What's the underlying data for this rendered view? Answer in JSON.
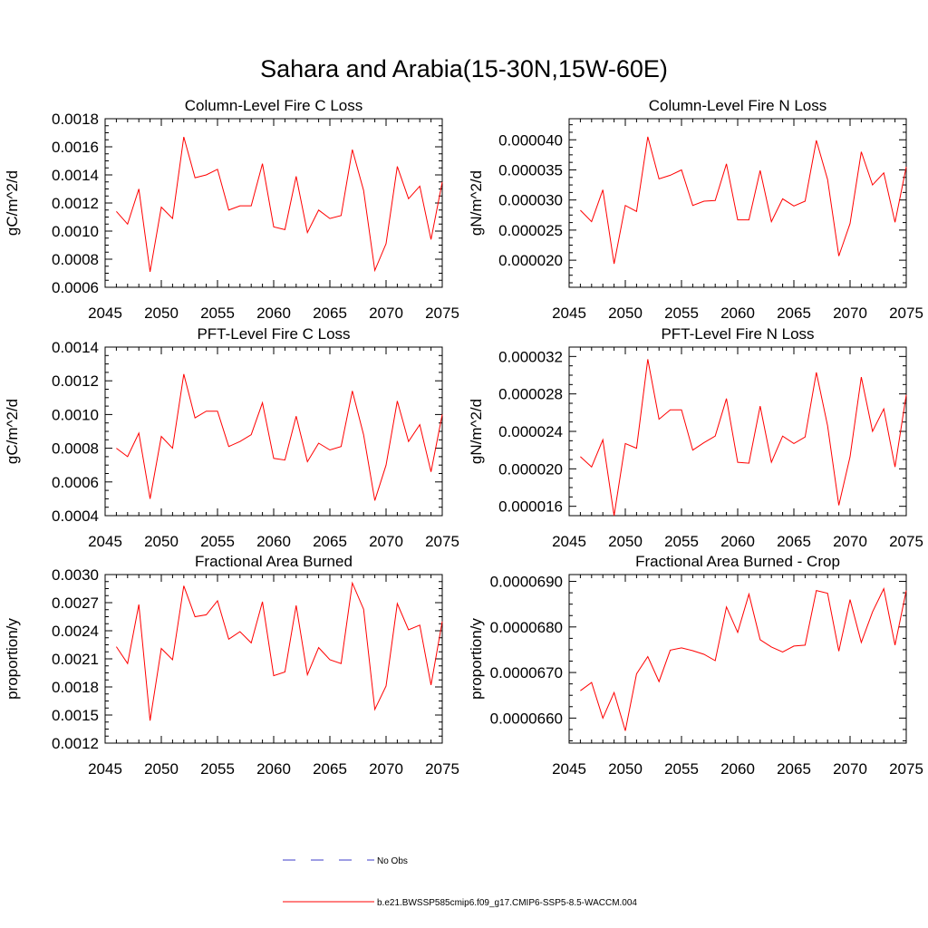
{
  "title": "Sahara and Arabia(15-30N,15W-60E)",
  "colors": {
    "model": "#ff0000",
    "obs": "#3c3cc8",
    "axis": "#000000"
  },
  "legend": {
    "obs_label": "No Obs",
    "model_label": "b.e21.BWSSP585cmip6.f09_g17.CMIP6-SSP5-8.5-WACCM.004"
  },
  "chart_data": [
    {
      "type": "line",
      "title": "Column-Level Fire C Loss",
      "ylabel": "gC/m^2/d",
      "xlabel": "",
      "xlim": [
        2045,
        2075
      ],
      "ylim": [
        0.0006,
        0.0018
      ],
      "xticks": [
        "2045",
        "2050",
        "2055",
        "2060",
        "2065",
        "2070",
        "2075"
      ],
      "yticks": [
        "0.0006",
        "0.0008",
        "0.0010",
        "0.0012",
        "0.0014",
        "0.0016",
        "0.0018"
      ],
      "x": [
        2046,
        2047,
        2048,
        2049,
        2050,
        2051,
        2052,
        2053,
        2054,
        2055,
        2056,
        2057,
        2058,
        2059,
        2060,
        2061,
        2062,
        2063,
        2064,
        2065,
        2066,
        2067,
        2068,
        2069,
        2070,
        2071,
        2072,
        2073,
        2074,
        2075
      ],
      "series": [
        {
          "name": "b.e21.BWSSP585cmip6.f09_g17.CMIP6-SSP5-8.5-WACCM.004",
          "values": [
            0.00114,
            0.00105,
            0.0013,
            0.00071,
            0.00117,
            0.00109,
            0.00167,
            0.00138,
            0.0014,
            0.00144,
            0.00115,
            0.00118,
            0.00118,
            0.00148,
            0.00103,
            0.00101,
            0.00139,
            0.00099,
            0.00115,
            0.00109,
            0.00111,
            0.00158,
            0.00129,
            0.00072,
            0.00091,
            0.00146,
            0.00123,
            0.00132,
            0.00094,
            0.00135
          ]
        }
      ]
    },
    {
      "type": "line",
      "title": "Column-Level Fire N Loss",
      "ylabel": "gN/m^2/d",
      "xlabel": "",
      "xlim": [
        2045,
        2075
      ],
      "ylim": [
        1.55e-05,
        4.35e-05
      ],
      "xticks": [
        "2045",
        "2050",
        "2055",
        "2060",
        "2065",
        "2070",
        "2075"
      ],
      "yticks": [
        "0.000020",
        "0.000025",
        "0.000030",
        "0.000035",
        "0.000040"
      ],
      "x": [
        2046,
        2047,
        2048,
        2049,
        2050,
        2051,
        2052,
        2053,
        2054,
        2055,
        2056,
        2057,
        2058,
        2059,
        2060,
        2061,
        2062,
        2063,
        2064,
        2065,
        2066,
        2067,
        2068,
        2069,
        2070,
        2071,
        2072,
        2073,
        2074,
        2075
      ],
      "series": [
        {
          "name": "b.e21.BWSSP585cmip6.f09_g17.CMIP6-SSP5-8.5-WACCM.004",
          "values": [
            2.83e-05,
            2.64e-05,
            3.17e-05,
            1.94e-05,
            2.91e-05,
            2.81e-05,
            4.05e-05,
            3.35e-05,
            3.41e-05,
            3.5e-05,
            2.91e-05,
            2.98e-05,
            2.99e-05,
            3.6e-05,
            2.67e-05,
            2.67e-05,
            3.49e-05,
            2.64e-05,
            3.02e-05,
            2.9e-05,
            2.98e-05,
            3.99e-05,
            3.34e-05,
            2.07e-05,
            2.61e-05,
            3.8e-05,
            3.25e-05,
            3.45e-05,
            2.63e-05,
            3.55e-05
          ]
        }
      ]
    },
    {
      "type": "line",
      "title": "PFT-Level Fire C Loss",
      "ylabel": "gC/m^2/d",
      "xlabel": "",
      "xlim": [
        2045,
        2075
      ],
      "ylim": [
        0.0004,
        0.0014
      ],
      "xticks": [
        "2045",
        "2050",
        "2055",
        "2060",
        "2065",
        "2070",
        "2075"
      ],
      "yticks": [
        "0.0004",
        "0.0006",
        "0.0008",
        "0.0010",
        "0.0012",
        "0.0014"
      ],
      "x": [
        2046,
        2047,
        2048,
        2049,
        2050,
        2051,
        2052,
        2053,
        2054,
        2055,
        2056,
        2057,
        2058,
        2059,
        2060,
        2061,
        2062,
        2063,
        2064,
        2065,
        2066,
        2067,
        2068,
        2069,
        2070,
        2071,
        2072,
        2073,
        2074,
        2075
      ],
      "series": [
        {
          "name": "b.e21.BWSSP585cmip6.f09_g17.CMIP6-SSP5-8.5-WACCM.004",
          "values": [
            0.0008,
            0.00075,
            0.00089,
            0.0005,
            0.00087,
            0.0008,
            0.00124,
            0.00098,
            0.00102,
            0.00102,
            0.00081,
            0.00084,
            0.00088,
            0.00107,
            0.00074,
            0.00073,
            0.00099,
            0.00072,
            0.00083,
            0.00079,
            0.00081,
            0.00114,
            0.00088,
            0.00049,
            0.0007,
            0.00108,
            0.00084,
            0.00094,
            0.00066,
            0.001
          ]
        }
      ]
    },
    {
      "type": "line",
      "title": "PFT-Level Fire N Loss",
      "ylabel": "gN/m^2/d",
      "xlabel": "",
      "xlim": [
        2045,
        2075
      ],
      "ylim": [
        1.5e-05,
        3.3e-05
      ],
      "xticks": [
        "2045",
        "2050",
        "2055",
        "2060",
        "2065",
        "2070",
        "2075"
      ],
      "yticks": [
        "0.000016",
        "0.000020",
        "0.000024",
        "0.000028",
        "0.000032"
      ],
      "x": [
        2046,
        2047,
        2048,
        2049,
        2050,
        2051,
        2052,
        2053,
        2054,
        2055,
        2056,
        2057,
        2058,
        2059,
        2060,
        2061,
        2062,
        2063,
        2064,
        2065,
        2066,
        2067,
        2068,
        2069,
        2070,
        2071,
        2072,
        2073,
        2074,
        2075
      ],
      "series": [
        {
          "name": "b.e21.BWSSP585cmip6.f09_g17.CMIP6-SSP5-8.5-WACCM.004",
          "values": [
            2.13e-05,
            2.02e-05,
            2.31e-05,
            1.5e-05,
            2.27e-05,
            2.22e-05,
            3.17e-05,
            2.53e-05,
            2.63e-05,
            2.63e-05,
            2.2e-05,
            2.28e-05,
            2.35e-05,
            2.75e-05,
            2.07e-05,
            2.06e-05,
            2.67e-05,
            2.07e-05,
            2.35e-05,
            2.27e-05,
            2.34e-05,
            3.03e-05,
            2.46e-05,
            1.61e-05,
            2.13e-05,
            2.98e-05,
            2.4e-05,
            2.64e-05,
            2.02e-05,
            2.79e-05
          ]
        }
      ]
    },
    {
      "type": "line",
      "title": "Fractional Area Burned",
      "ylabel": "proportion/y",
      "xlabel": "",
      "xlim": [
        2045,
        2075
      ],
      "ylim": [
        0.0012,
        0.003
      ],
      "xticks": [
        "2045",
        "2050",
        "2055",
        "2060",
        "2065",
        "2070",
        "2075"
      ],
      "yticks": [
        "0.0012",
        "0.0015",
        "0.0018",
        "0.0021",
        "0.0024",
        "0.0027",
        "0.0030"
      ],
      "x": [
        2046,
        2047,
        2048,
        2049,
        2050,
        2051,
        2052,
        2053,
        2054,
        2055,
        2056,
        2057,
        2058,
        2059,
        2060,
        2061,
        2062,
        2063,
        2064,
        2065,
        2066,
        2067,
        2068,
        2069,
        2070,
        2071,
        2072,
        2073,
        2074,
        2075
      ],
      "series": [
        {
          "name": "b.e21.BWSSP585cmip6.f09_g17.CMIP6-SSP5-8.5-WACCM.004",
          "values": [
            0.00223,
            0.00205,
            0.00268,
            0.00144,
            0.00221,
            0.00209,
            0.00288,
            0.00255,
            0.00257,
            0.00272,
            0.00231,
            0.00239,
            0.00227,
            0.00271,
            0.00192,
            0.00196,
            0.00267,
            0.00193,
            0.00222,
            0.00209,
            0.00205,
            0.00291,
            0.00263,
            0.00156,
            0.00181,
            0.00269,
            0.00241,
            0.00246,
            0.00182,
            0.0025
          ]
        }
      ]
    },
    {
      "type": "line",
      "title": "Fractional Area Burned - Crop",
      "ylabel": "proportion/y",
      "xlabel": "",
      "xlim": [
        2045,
        2075
      ],
      "ylim": [
        6.545e-05,
        6.915e-05
      ],
      "xticks": [
        "2045",
        "2050",
        "2055",
        "2060",
        "2065",
        "2070",
        "2075"
      ],
      "yticks": [
        "0.0000660",
        "0.0000670",
        "0.0000680",
        "0.0000690"
      ],
      "x": [
        2046,
        2047,
        2048,
        2049,
        2050,
        2051,
        2052,
        2053,
        2054,
        2055,
        2056,
        2057,
        2058,
        2059,
        2060,
        2061,
        2062,
        2063,
        2064,
        2065,
        2066,
        2067,
        2068,
        2069,
        2070,
        2071,
        2072,
        2073,
        2074,
        2075
      ],
      "series": [
        {
          "name": "b.e21.BWSSP585cmip6.f09_g17.CMIP6-SSP5-8.5-WACCM.004",
          "values": [
            6.66e-05,
            6.678e-05,
            6.6e-05,
            6.656e-05,
            6.572e-05,
            6.697e-05,
            6.735e-05,
            6.68e-05,
            6.749e-05,
            6.754e-05,
            6.748e-05,
            6.74e-05,
            6.726e-05,
            6.844e-05,
            6.788e-05,
            6.872e-05,
            6.772e-05,
            6.756e-05,
            6.745e-05,
            6.758e-05,
            6.76e-05,
            6.88e-05,
            6.874e-05,
            6.747e-05,
            6.86e-05,
            6.766e-05,
            6.833e-05,
            6.884e-05,
            6.76e-05,
            6.88e-05
          ]
        }
      ]
    }
  ]
}
